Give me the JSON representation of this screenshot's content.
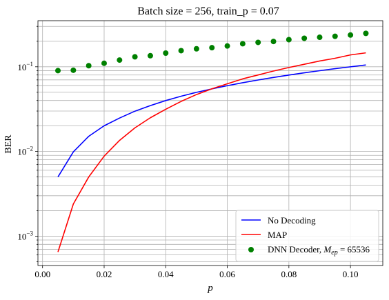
{
  "chart_data": {
    "type": "line",
    "title": "Batch size = 256, train_p = 0.07",
    "xlabel": "p",
    "ylabel": "BER",
    "xlim": [
      -0.0015,
      0.1105
    ],
    "ylim": [
      0.00045,
      0.35
    ],
    "yscale": "log",
    "grid": true,
    "legend_position": "lower-right",
    "x_ticks": [
      0.0,
      0.02,
      0.04,
      0.06,
      0.08,
      0.1
    ],
    "x_tick_labels": [
      "0.00",
      "0.02",
      "0.04",
      "0.06",
      "0.08",
      "0.10"
    ],
    "y_ticks": [
      0.001,
      0.01,
      0.1
    ],
    "y_tick_labels": [
      {
        "base": "10",
        "exp": "−3"
      },
      {
        "base": "10",
        "exp": "−2"
      },
      {
        "base": "10",
        "exp": "−1"
      }
    ],
    "x": [
      0.005,
      0.01,
      0.015,
      0.02,
      0.025,
      0.03,
      0.035,
      0.04,
      0.045,
      0.05,
      0.055,
      0.06,
      0.065,
      0.07,
      0.075,
      0.08,
      0.085,
      0.09,
      0.095,
      0.1,
      0.105
    ],
    "series": [
      {
        "name": "No Decoding",
        "kind": "line",
        "color": "#0000ff",
        "values": [
          0.005,
          0.0099,
          0.0151,
          0.0201,
          0.0248,
          0.0299,
          0.0348,
          0.0399,
          0.0449,
          0.0499,
          0.0548,
          0.0598,
          0.0648,
          0.0698,
          0.0748,
          0.0799,
          0.0849,
          0.0899,
          0.0949,
          0.0999,
          0.105
        ]
      },
      {
        "name": "MAP",
        "kind": "line",
        "color": "#ff0000",
        "values": [
          0.00065,
          0.0024,
          0.005,
          0.0088,
          0.0135,
          0.019,
          0.025,
          0.0315,
          0.039,
          0.047,
          0.055,
          0.063,
          0.072,
          0.08,
          0.089,
          0.098,
          0.107,
          0.117,
          0.126,
          0.138,
          0.146
        ]
      },
      {
        "name_prefix": "DNN Decoder, ",
        "name_math": {
          "M": "M",
          "sub": "ep",
          "eq": " = 65536"
        },
        "kind": "scatter",
        "color": "#008000",
        "values": [
          0.09,
          0.091,
          0.103,
          0.11,
          0.12,
          0.131,
          0.135,
          0.145,
          0.155,
          0.163,
          0.168,
          0.176,
          0.187,
          0.194,
          0.199,
          0.209,
          0.217,
          0.223,
          0.229,
          0.237,
          0.248
        ]
      }
    ]
  }
}
